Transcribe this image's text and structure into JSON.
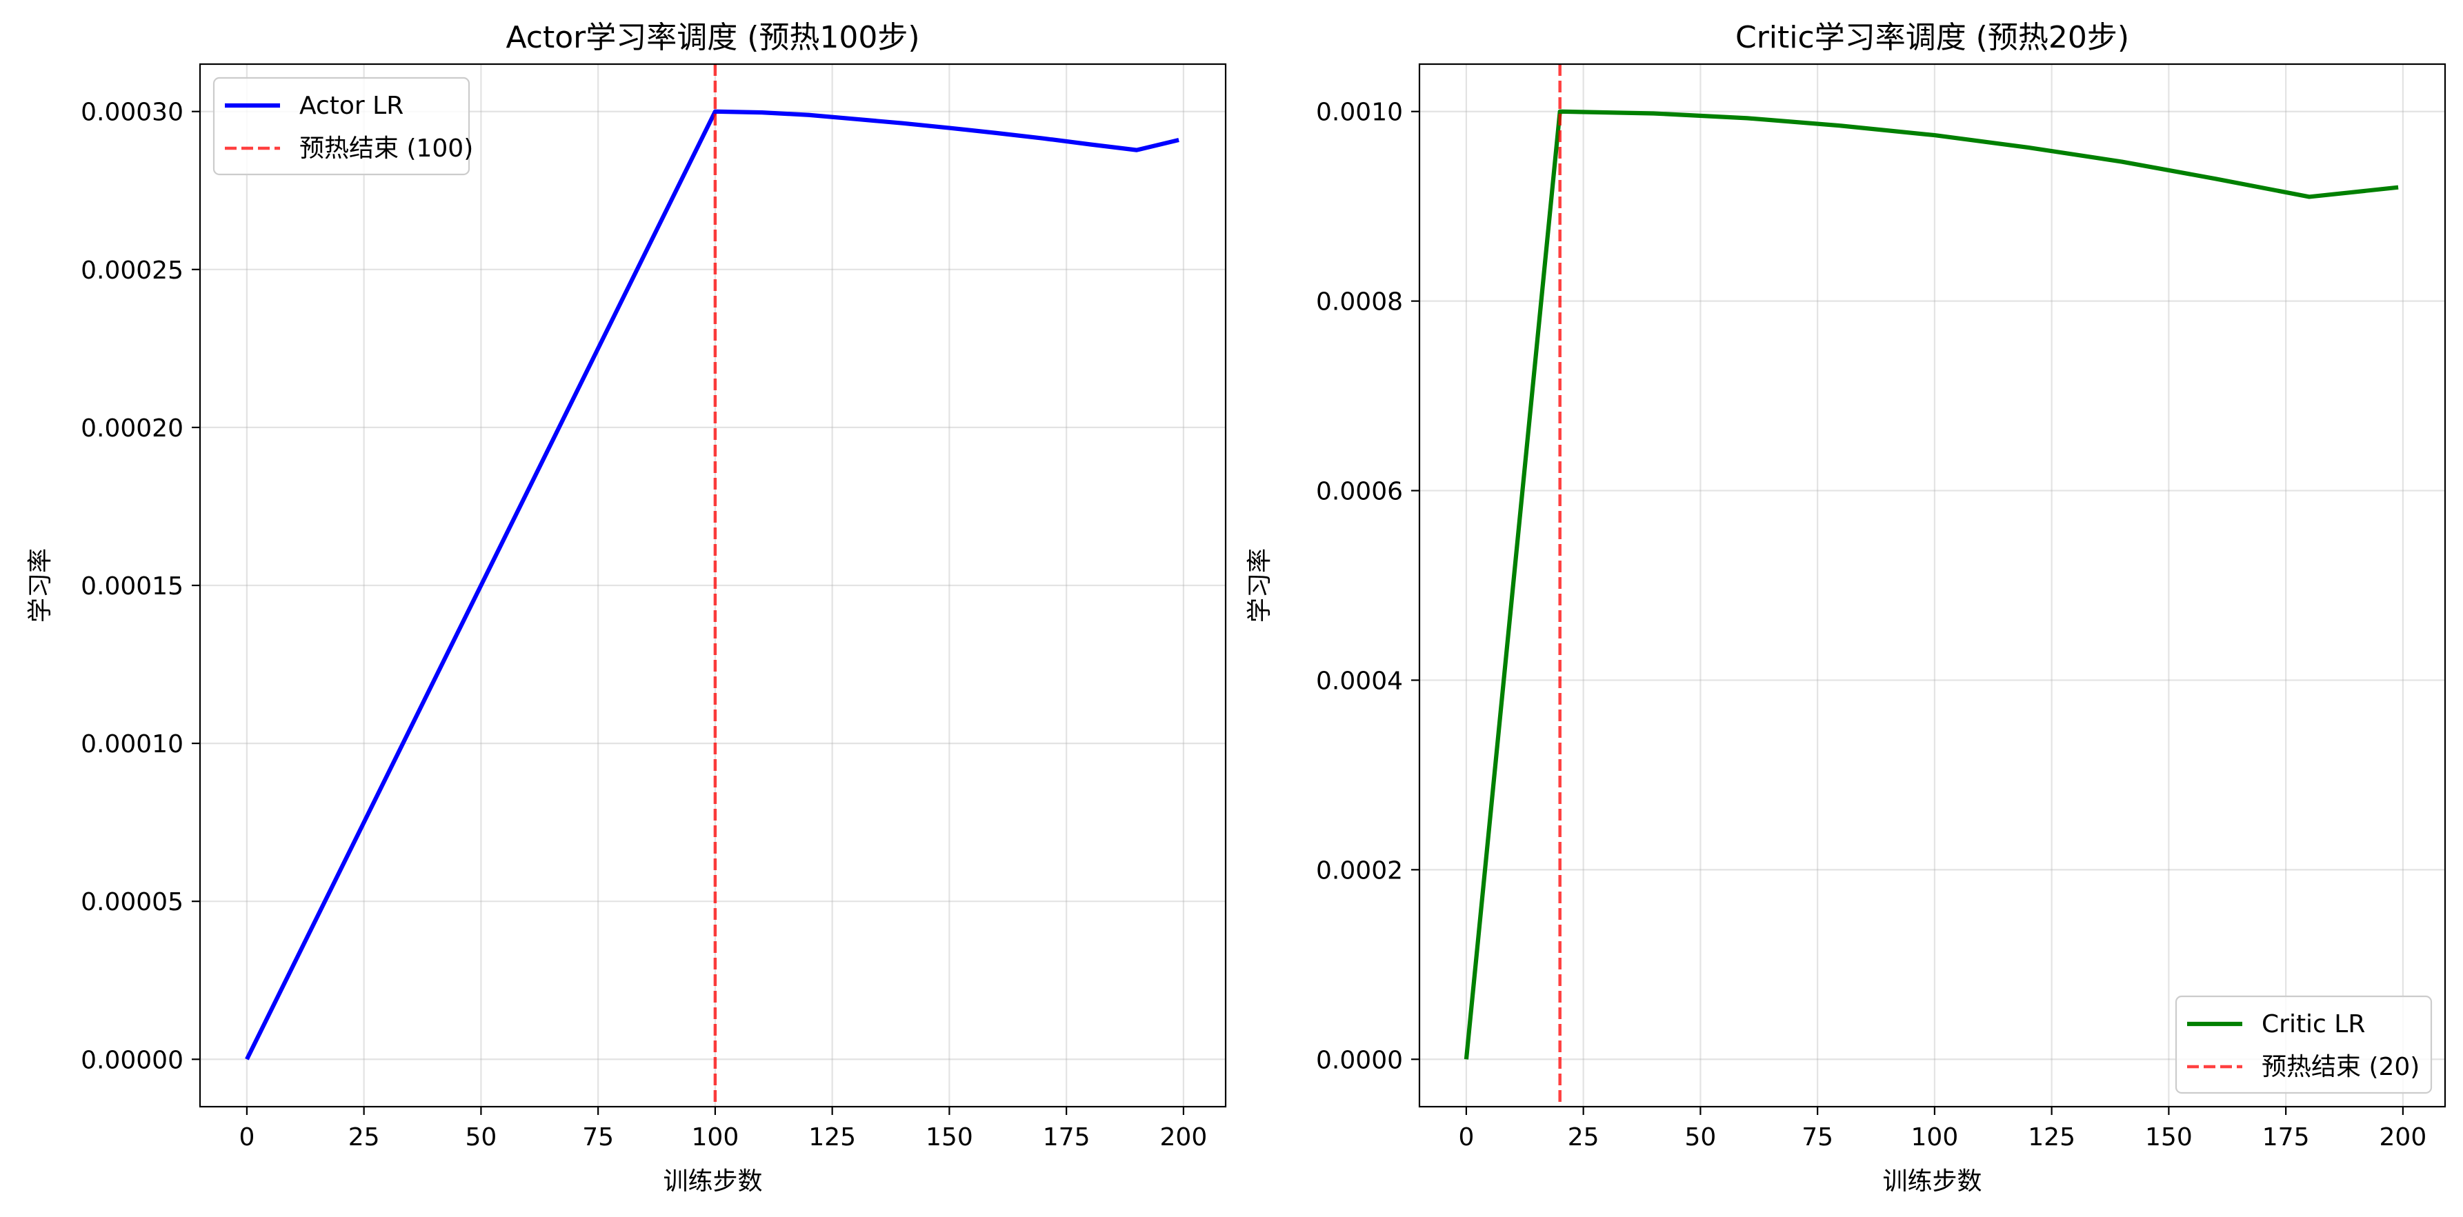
{
  "chart_data": [
    {
      "type": "line",
      "title": "Actor学习率调度 (预热100步)",
      "xlabel": "训练步数",
      "ylabel": "学习率",
      "xlim": [
        -10,
        209
      ],
      "ylim": [
        -1.5e-05,
        0.000315
      ],
      "xticks": [
        0,
        25,
        50,
        75,
        100,
        125,
        150,
        175,
        200
      ],
      "xtick_labels": [
        "0",
        "25",
        "50",
        "75",
        "100",
        "125",
        "150",
        "175",
        "200"
      ],
      "yticks": [
        0,
        5e-05,
        0.0001,
        0.00015,
        0.0002,
        0.00025,
        0.0003
      ],
      "ytick_labels": [
        "0.00000",
        "0.00005",
        "0.00010",
        "0.00015",
        "0.00020",
        "0.00025",
        "0.00030"
      ],
      "grid": true,
      "legend_position": "top-left",
      "series": [
        {
          "name": "Actor LR",
          "color": "#0000ff",
          "style": "solid",
          "x": [
            0,
            100,
            110,
            120,
            130,
            140,
            150,
            160,
            170,
            180,
            190,
            199
          ],
          "y": [
            0,
            0.0003,
            0.0002997,
            0.0002989,
            0.0002976,
            0.0002963,
            0.0002948,
            0.0002932,
            0.0002915,
            0.0002896,
            0.0002878,
            0.000291
          ]
        },
        {
          "name": "预热结束 (100)",
          "color": "#ff0000",
          "style": "dashed",
          "vline_x": 100
        }
      ]
    },
    {
      "type": "line",
      "title": "Critic学习率调度 (预热20步)",
      "xlabel": "训练步数",
      "ylabel": "学习率",
      "xlim": [
        -10,
        209
      ],
      "ylim": [
        -5e-05,
        0.00105
      ],
      "xticks": [
        0,
        25,
        50,
        75,
        100,
        125,
        150,
        175,
        200
      ],
      "xtick_labels": [
        "0",
        "25",
        "50",
        "75",
        "100",
        "125",
        "150",
        "175",
        "200"
      ],
      "yticks": [
        0,
        0.0002,
        0.0004,
        0.0006,
        0.0008,
        0.001
      ],
      "ytick_labels": [
        "0.0000",
        "0.0002",
        "0.0004",
        "0.0006",
        "0.0008",
        "0.0010"
      ],
      "grid": true,
      "legend_position": "bottom-right",
      "series": [
        {
          "name": "Critic LR",
          "color": "#008000",
          "style": "solid",
          "x": [
            0,
            20,
            40,
            60,
            80,
            100,
            120,
            140,
            160,
            180,
            199
          ],
          "y": [
            0,
            0.001,
            0.000998,
            0.000993,
            0.000985,
            0.000975,
            0.000962,
            0.000947,
            0.000929,
            0.00091,
            0.00092
          ]
        },
        {
          "name": "预热结束 (20)",
          "color": "#ff0000",
          "style": "dashed",
          "vline_x": 20
        }
      ]
    }
  ]
}
